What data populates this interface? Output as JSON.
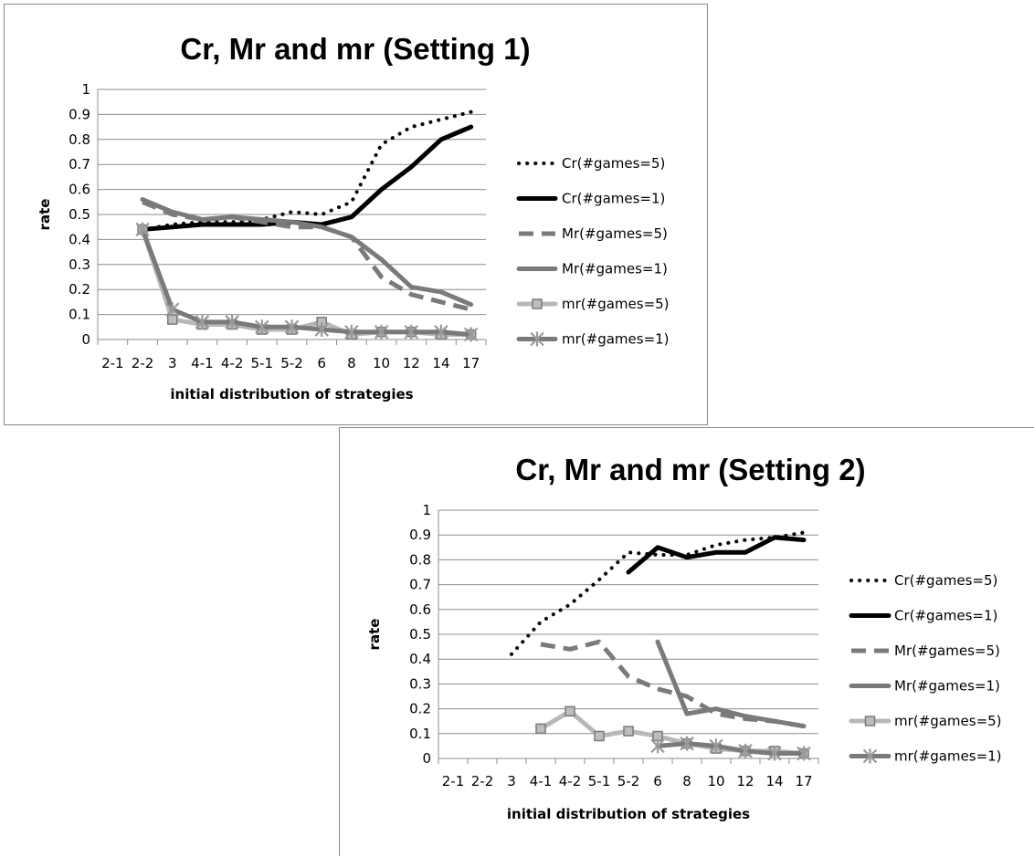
{
  "chart_data": [
    {
      "type": "line",
      "title": "Cr, Mr and mr (Setting 1)",
      "xlabel": "initial distribution of strategies",
      "ylabel": "rate",
      "ylim": [
        0,
        1
      ],
      "yticks": [
        "0",
        "0.1",
        "0.2",
        "0.3",
        "0.4",
        "0.5",
        "0.6",
        "0.7",
        "0.8",
        "0.9",
        "1"
      ],
      "categories": [
        "2-1",
        "2-2",
        "3",
        "4-1",
        "4-2",
        "5-1",
        "5-2",
        "6",
        "8",
        "10",
        "12",
        "14",
        "17"
      ],
      "grid": true,
      "legend": "right",
      "series": [
        {
          "name": "Cr(#games=5)",
          "style": "dotted",
          "color": "#000000",
          "values": [
            null,
            0.44,
            0.46,
            0.47,
            0.47,
            0.48,
            0.51,
            0.5,
            0.55,
            0.78,
            0.85,
            0.88,
            0.91
          ]
        },
        {
          "name": "Cr(#games=1)",
          "style": "solid",
          "color": "#000000",
          "values": [
            null,
            0.44,
            0.45,
            0.46,
            0.46,
            0.46,
            0.47,
            0.46,
            0.49,
            0.6,
            0.69,
            0.8,
            0.85
          ]
        },
        {
          "name": "Mr(#games=5)",
          "style": "dashed",
          "color": "#7a7a7a",
          "values": [
            null,
            0.55,
            0.5,
            0.48,
            0.49,
            0.47,
            0.45,
            0.45,
            0.41,
            0.25,
            0.18,
            0.15,
            0.12
          ]
        },
        {
          "name": "Mr(#games=1)",
          "style": "solid",
          "color": "#7a7a7a",
          "values": [
            null,
            0.56,
            0.51,
            0.48,
            0.49,
            0.48,
            0.47,
            0.45,
            0.41,
            0.32,
            0.21,
            0.19,
            0.14
          ]
        },
        {
          "name": "mr(#games=5)",
          "style": "solid",
          "color": "#b8b8b8",
          "marker": "square",
          "values": [
            null,
            0.44,
            0.08,
            0.06,
            0.06,
            0.04,
            0.04,
            0.07,
            0.02,
            0.03,
            0.03,
            0.02,
            0.02
          ]
        },
        {
          "name": "mr(#games=1)",
          "style": "solid",
          "color": "#7a7a7a",
          "marker": "star",
          "values": [
            null,
            0.44,
            0.12,
            0.07,
            0.07,
            0.05,
            0.05,
            0.04,
            0.03,
            0.03,
            0.03,
            0.03,
            0.02
          ]
        }
      ]
    },
    {
      "type": "line",
      "title": "Cr, Mr and mr (Setting 2)",
      "xlabel": "initial distribution of strategies",
      "ylabel": "rate",
      "ylim": [
        0,
        1
      ],
      "yticks": [
        "0",
        "0.1",
        "0.2",
        "0.3",
        "0.4",
        "0.5",
        "0.6",
        "0.7",
        "0.8",
        "0.9",
        "1"
      ],
      "categories": [
        "2-1",
        "2-2",
        "3",
        "4-1",
        "4-2",
        "5-1",
        "5-2",
        "6",
        "8",
        "10",
        "12",
        "14",
        "17"
      ],
      "grid": true,
      "legend": "right",
      "series": [
        {
          "name": "Cr(#games=5)",
          "style": "dotted",
          "color": "#000000",
          "values": [
            null,
            null,
            0.42,
            0.55,
            0.62,
            0.72,
            0.83,
            0.82,
            0.82,
            0.86,
            0.88,
            0.89,
            0.91
          ]
        },
        {
          "name": "Cr(#games=1)",
          "style": "solid",
          "color": "#000000",
          "values": [
            null,
            null,
            null,
            null,
            null,
            null,
            0.75,
            0.85,
            0.81,
            0.83,
            0.83,
            0.89,
            0.88
          ]
        },
        {
          "name": "Mr(#games=5)",
          "style": "dashed",
          "color": "#7a7a7a",
          "values": [
            null,
            null,
            null,
            0.46,
            0.44,
            0.47,
            0.33,
            0.28,
            0.25,
            0.18,
            0.16,
            0.15,
            0.13
          ]
        },
        {
          "name": "Mr(#games=1)",
          "style": "solid",
          "color": "#7a7a7a",
          "values": [
            null,
            null,
            null,
            null,
            null,
            null,
            null,
            0.47,
            0.18,
            0.2,
            0.17,
            0.15,
            0.13
          ]
        },
        {
          "name": "mr(#games=5)",
          "style": "solid",
          "color": "#b8b8b8",
          "marker": "square",
          "values": [
            null,
            null,
            null,
            0.12,
            0.19,
            0.09,
            0.11,
            0.09,
            0.06,
            0.04,
            0.03,
            0.03,
            0.02
          ]
        },
        {
          "name": "mr(#games=1)",
          "style": "solid",
          "color": "#7a7a7a",
          "marker": "star",
          "values": [
            null,
            null,
            null,
            null,
            null,
            null,
            null,
            0.05,
            0.06,
            0.05,
            0.03,
            0.02,
            0.02
          ]
        }
      ]
    }
  ]
}
